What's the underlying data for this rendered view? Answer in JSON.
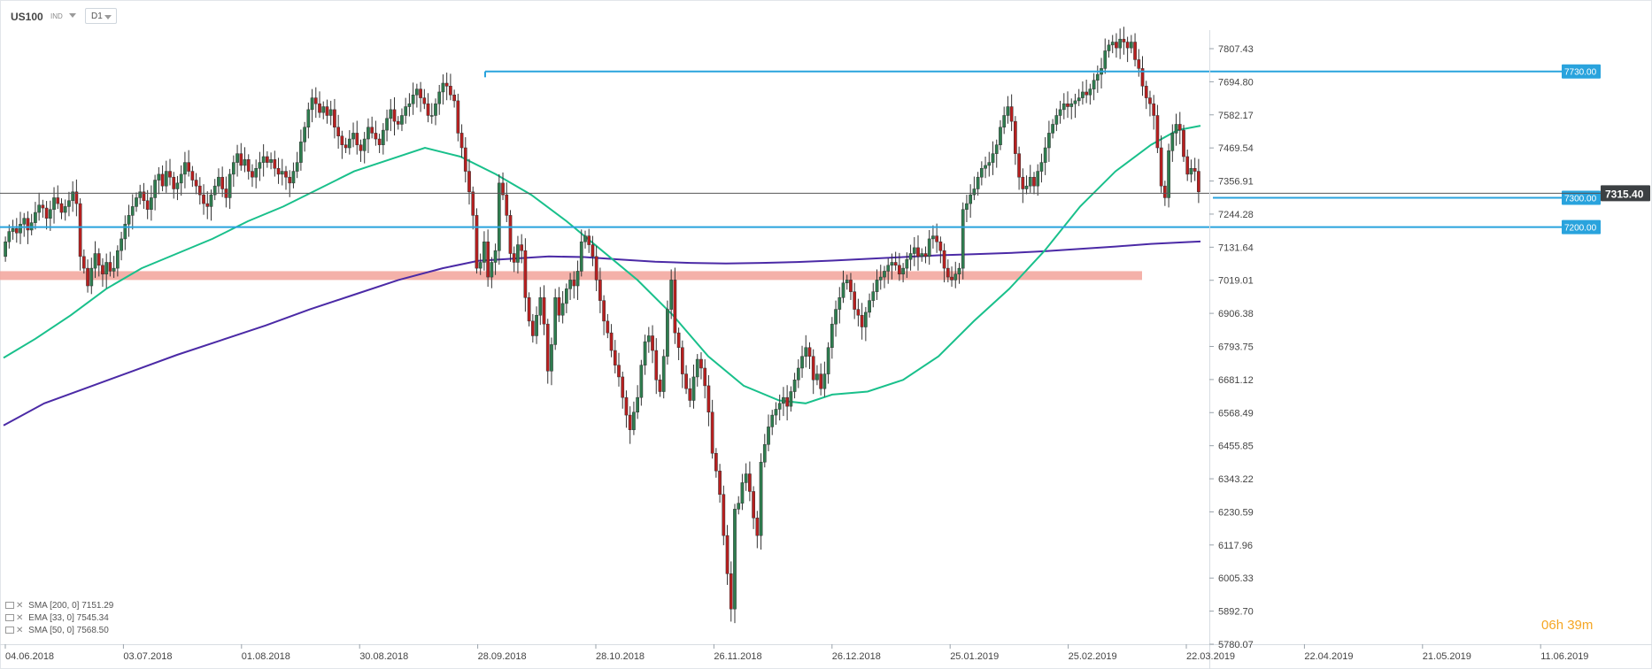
{
  "toolbar": {
    "symbol": "US100",
    "instrument_type": "IND",
    "timeframe": "D1"
  },
  "countdown": {
    "hours": "06",
    "minutes": "39",
    "h_unit": "h",
    "m_unit": "m"
  },
  "legend": [
    {
      "label": "SMA  [200,  0]",
      "value": "7151.29"
    },
    {
      "label": "EMA  [33,  0]",
      "value": "7545.34"
    },
    {
      "label": "SMA  [50,  0]",
      "value": "7568.50"
    }
  ],
  "colors": {
    "up": "#2e7d4f",
    "down": "#b81f1f",
    "sma200": "#4b2aa6",
    "ema33": "#19c08b",
    "hline": "#29a3dd",
    "zone": "#f2a39a",
    "price": "#333333"
  },
  "chart_data": {
    "type": "candlestick",
    "y_ticks": [
      "7807.43",
      "7694.80",
      "7582.17",
      "7469.54",
      "7356.91",
      "7244.28",
      "7131.64",
      "7019.01",
      "6906.38",
      "6793.75",
      "6681.12",
      "6568.49",
      "6455.85",
      "6343.22",
      "6230.59",
      "6117.96",
      "6005.33",
      "5892.70",
      "5780.07"
    ],
    "ylim": [
      5780.07,
      7807.43
    ],
    "x_ticks": [
      "04.06.2018",
      "03.07.2018",
      "01.08.2018",
      "30.08.2018",
      "28.09.2018",
      "28.10.2018",
      "26.11.2018",
      "26.12.2018",
      "25.01.2019",
      "25.02.2019",
      "22.03.2019",
      "22.04.2019",
      "21.05.2019",
      "11.06.2019"
    ],
    "last_price": "7315.40",
    "levels": [
      {
        "label": "7730.00",
        "value": 7730.0
      },
      {
        "label": "7300.00",
        "value": 7300.0
      },
      {
        "label": "7200.00",
        "value": 7200.0
      }
    ],
    "support_zone": [
      7020,
      7050
    ],
    "closes": [
      7150,
      7185,
      7195,
      7180,
      7210,
      7230,
      7190,
      7215,
      7250,
      7275,
      7265,
      7230,
      7260,
      7300,
      7280,
      7250,
      7270,
      7290,
      7320,
      7280,
      7100,
      7060,
      7000,
      7060,
      7110,
      7070,
      7040,
      7080,
      7050,
      7060,
      7120,
      7160,
      7210,
      7240,
      7270,
      7300,
      7320,
      7290,
      7260,
      7300,
      7360,
      7380,
      7340,
      7390,
      7370,
      7330,
      7350,
      7380,
      7420,
      7390,
      7360,
      7340,
      7310,
      7280,
      7270,
      7310,
      7340,
      7370,
      7330,
      7300,
      7380,
      7420,
      7450,
      7410,
      7430,
      7390,
      7370,
      7400,
      7420,
      7440,
      7420,
      7430,
      7400,
      7380,
      7390,
      7370,
      7350,
      7390,
      7420,
      7490,
      7540,
      7600,
      7640,
      7620,
      7590,
      7610,
      7580,
      7600,
      7540,
      7510,
      7480,
      7470,
      7500,
      7520,
      7480,
      7460,
      7500,
      7540,
      7520,
      7500,
      7480,
      7530,
      7570,
      7600,
      7560,
      7550,
      7580,
      7610,
      7620,
      7650,
      7670,
      7640,
      7620,
      7580,
      7580,
      7620,
      7660,
      7690,
      7680,
      7650,
      7630,
      7520,
      7470,
      7390,
      7320,
      7240,
      7060,
      7080,
      7150,
      7030,
      7080,
      7120,
      7350,
      7310,
      7240,
      7110,
      7080,
      7140,
      7120,
      6960,
      6880,
      6830,
      6900,
      6960,
      6870,
      6710,
      6800,
      6960,
      6900,
      6940,
      6990,
      7020,
      7000,
      7050,
      7150,
      7170,
      7140,
      7100,
      7020,
      6950,
      6880,
      6840,
      6780,
      6730,
      6690,
      6620,
      6560,
      6510,
      6570,
      6620,
      6730,
      6810,
      6830,
      6780,
      6680,
      6640,
      6760,
      6920,
      7020,
      6840,
      6790,
      6700,
      6650,
      6610,
      6690,
      6750,
      6720,
      6660,
      6570,
      6430,
      6370,
      6290,
      6150,
      6020,
      5900,
      6240,
      6260,
      6330,
      6360,
      6300,
      6210,
      6150,
      6400,
      6460,
      6520,
      6560,
      6580,
      6600,
      6620,
      6590,
      6640,
      6680,
      6720,
      6760,
      6790,
      6760,
      6680,
      6700,
      6650,
      6700,
      6790,
      6870,
      6920,
      6960,
      7010,
      7020,
      6980,
      6920,
      6900,
      6860,
      6910,
      6950,
      6980,
      7020,
      7030,
      7050,
      7070,
      7080,
      7070,
      7040,
      7060,
      7090,
      7110,
      7130,
      7100,
      7110,
      7100,
      7160,
      7170,
      7150,
      7120,
      7060,
      7030,
      7020,
      7040,
      7060,
      7260,
      7280,
      7310,
      7330,
      7370,
      7400,
      7410,
      7420,
      7450,
      7480,
      7540,
      7580,
      7610,
      7560,
      7450,
      7370,
      7330,
      7340,
      7370,
      7340,
      7390,
      7420,
      7470,
      7520,
      7550,
      7580,
      7600,
      7620,
      7610,
      7620,
      7630,
      7640,
      7660,
      7650,
      7670,
      7700,
      7720,
      7740,
      7800,
      7820,
      7830,
      7810,
      7840,
      7830,
      7810,
      7830,
      7770,
      7740,
      7680,
      7640,
      7620,
      7580,
      7470,
      7340,
      7300,
      7460,
      7520,
      7550,
      7530,
      7440,
      7380,
      7400,
      7390,
      7320
    ],
    "sma200": [
      [
        4,
        6525
      ],
      [
        50,
        6600
      ],
      [
        100,
        6655
      ],
      [
        150,
        6710
      ],
      [
        200,
        6765
      ],
      [
        250,
        6815
      ],
      [
        300,
        6865
      ],
      [
        350,
        6920
      ],
      [
        400,
        6970
      ],
      [
        450,
        7020
      ],
      [
        500,
        7060
      ],
      [
        540,
        7085
      ],
      [
        580,
        7093
      ],
      [
        620,
        7100
      ],
      [
        660,
        7098
      ],
      [
        700,
        7090
      ],
      [
        740,
        7082
      ],
      [
        780,
        7078
      ],
      [
        820,
        7076
      ],
      [
        860,
        7078
      ],
      [
        900,
        7081
      ],
      [
        940,
        7086
      ],
      [
        980,
        7092
      ],
      [
        1020,
        7098
      ],
      [
        1060,
        7104
      ],
      [
        1100,
        7108
      ],
      [
        1140,
        7112
      ],
      [
        1180,
        7118
      ],
      [
        1220,
        7126
      ],
      [
        1260,
        7134
      ],
      [
        1300,
        7143
      ],
      [
        1340,
        7149
      ],
      [
        1356,
        7151
      ]
    ],
    "ema33": [
      [
        4,
        6755
      ],
      [
        40,
        6820
      ],
      [
        80,
        6900
      ],
      [
        120,
        6990
      ],
      [
        160,
        7060
      ],
      [
        200,
        7110
      ],
      [
        240,
        7160
      ],
      [
        280,
        7220
      ],
      [
        320,
        7270
      ],
      [
        360,
        7330
      ],
      [
        400,
        7390
      ],
      [
        440,
        7430
      ],
      [
        480,
        7470
      ],
      [
        520,
        7440
      ],
      [
        560,
        7380
      ],
      [
        600,
        7310
      ],
      [
        640,
        7220
      ],
      [
        680,
        7120
      ],
      [
        720,
        7020
      ],
      [
        760,
        6900
      ],
      [
        800,
        6760
      ],
      [
        840,
        6660
      ],
      [
        880,
        6610
      ],
      [
        910,
        6600
      ],
      [
        940,
        6630
      ],
      [
        980,
        6640
      ],
      [
        1020,
        6680
      ],
      [
        1060,
        6760
      ],
      [
        1100,
        6880
      ],
      [
        1140,
        6990
      ],
      [
        1180,
        7120
      ],
      [
        1220,
        7270
      ],
      [
        1260,
        7390
      ],
      [
        1300,
        7480
      ],
      [
        1330,
        7530
      ],
      [
        1356,
        7545
      ]
    ]
  }
}
